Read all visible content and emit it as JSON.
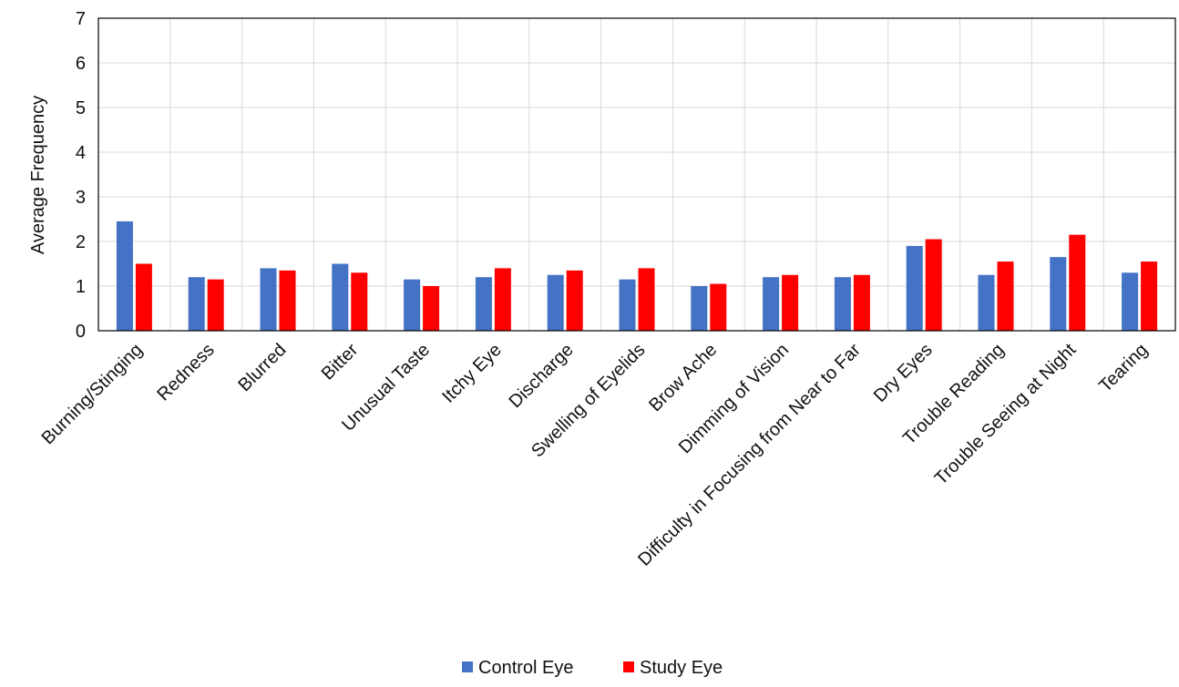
{
  "chart_data": {
    "type": "bar",
    "ylabel": "Average Frequency",
    "ylim": [
      0,
      7
    ],
    "yticks": [
      0,
      1,
      2,
      3,
      4,
      5,
      6,
      7
    ],
    "grid": true,
    "legend_position": "bottom-center",
    "categories": [
      "Burning/Stinging",
      "Redness",
      "Blurred",
      "Bitter",
      "Unusual Taste",
      "Itchy Eye",
      "Discharge",
      "Swelling of Eyelids",
      "Brow Ache",
      "Dimming of Vision",
      "Difficulty in Focusing from Near to Far",
      "Dry Eyes",
      "Trouble Reading",
      "Trouble Seeing at Night",
      "Tearing"
    ],
    "series": [
      {
        "name": "Control Eye",
        "color": "#4472C4",
        "values": [
          2.45,
          1.2,
          1.4,
          1.5,
          1.15,
          1.2,
          1.25,
          1.15,
          1.0,
          1.2,
          1.2,
          1.9,
          1.25,
          1.65,
          1.3
        ]
      },
      {
        "name": "Study Eye",
        "color": "#FF0000",
        "values": [
          1.5,
          1.15,
          1.35,
          1.3,
          1.0,
          1.4,
          1.35,
          1.4,
          1.05,
          1.25,
          1.25,
          2.05,
          1.55,
          2.15,
          1.55
        ]
      }
    ]
  }
}
